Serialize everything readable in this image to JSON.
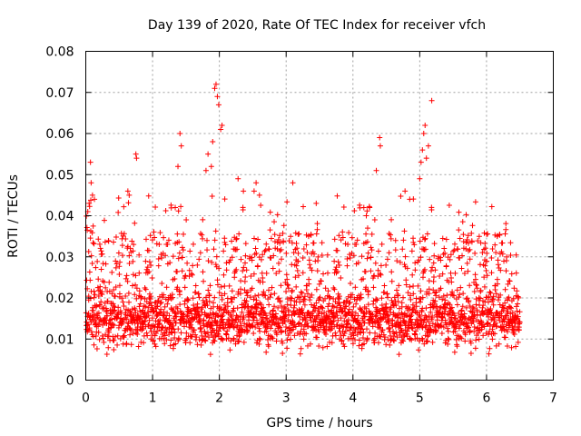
{
  "chart_data": {
    "type": "scatter",
    "title": "Day 139 of 2020, Rate Of TEC Index for receiver vfch",
    "xlabel": "GPS time / hours",
    "ylabel": "ROTI / TECUs",
    "xlim": [
      0,
      7
    ],
    "ylim": [
      0,
      0.08
    ],
    "xticks": [
      "0",
      "1",
      "2",
      "3",
      "4",
      "5",
      "6",
      "7"
    ],
    "yticks": [
      "0",
      "0.01",
      "0.02",
      "0.03",
      "0.04",
      "0.05",
      "0.06",
      "0.07",
      "0.08"
    ],
    "grid": true,
    "marker": "+",
    "color": "#ff0000",
    "x_range_data": [
      0,
      6.5
    ],
    "baseline_roti": 0.015,
    "series": [
      {
        "name": "ROTI",
        "x": [
          1.41,
          1.43,
          1.93,
          1.95,
          1.97,
          1.99,
          2.02,
          2.04,
          0.75,
          0.76,
          3.1,
          4.4,
          4.41,
          4.35,
          5.0,
          5.02,
          5.04,
          5.06,
          5.08,
          5.1,
          5.13,
          5.18,
          1.8,
          1.83,
          1.88,
          1.9,
          0.07,
          0.08,
          0.1,
          0.13,
          0.63,
          0.65,
          2.52,
          2.55,
          2.6,
          0.03,
          0.05,
          4.78,
          4.85,
          4.2,
          4.22,
          4.25,
          2.28,
          2.36,
          3.45,
          1.38
        ],
        "y": [
          0.06,
          0.057,
          0.071,
          0.072,
          0.069,
          0.067,
          0.061,
          0.062,
          0.055,
          0.054,
          0.048,
          0.059,
          0.057,
          0.051,
          0.049,
          0.053,
          0.056,
          0.06,
          0.062,
          0.054,
          0.057,
          0.068,
          0.051,
          0.055,
          0.052,
          0.058,
          0.053,
          0.048,
          0.045,
          0.044,
          0.046,
          0.045,
          0.046,
          0.048,
          0.045,
          0.041,
          0.043,
          0.046,
          0.044,
          0.04,
          0.037,
          0.042,
          0.049,
          0.046,
          0.043,
          0.052
        ]
      }
    ]
  }
}
